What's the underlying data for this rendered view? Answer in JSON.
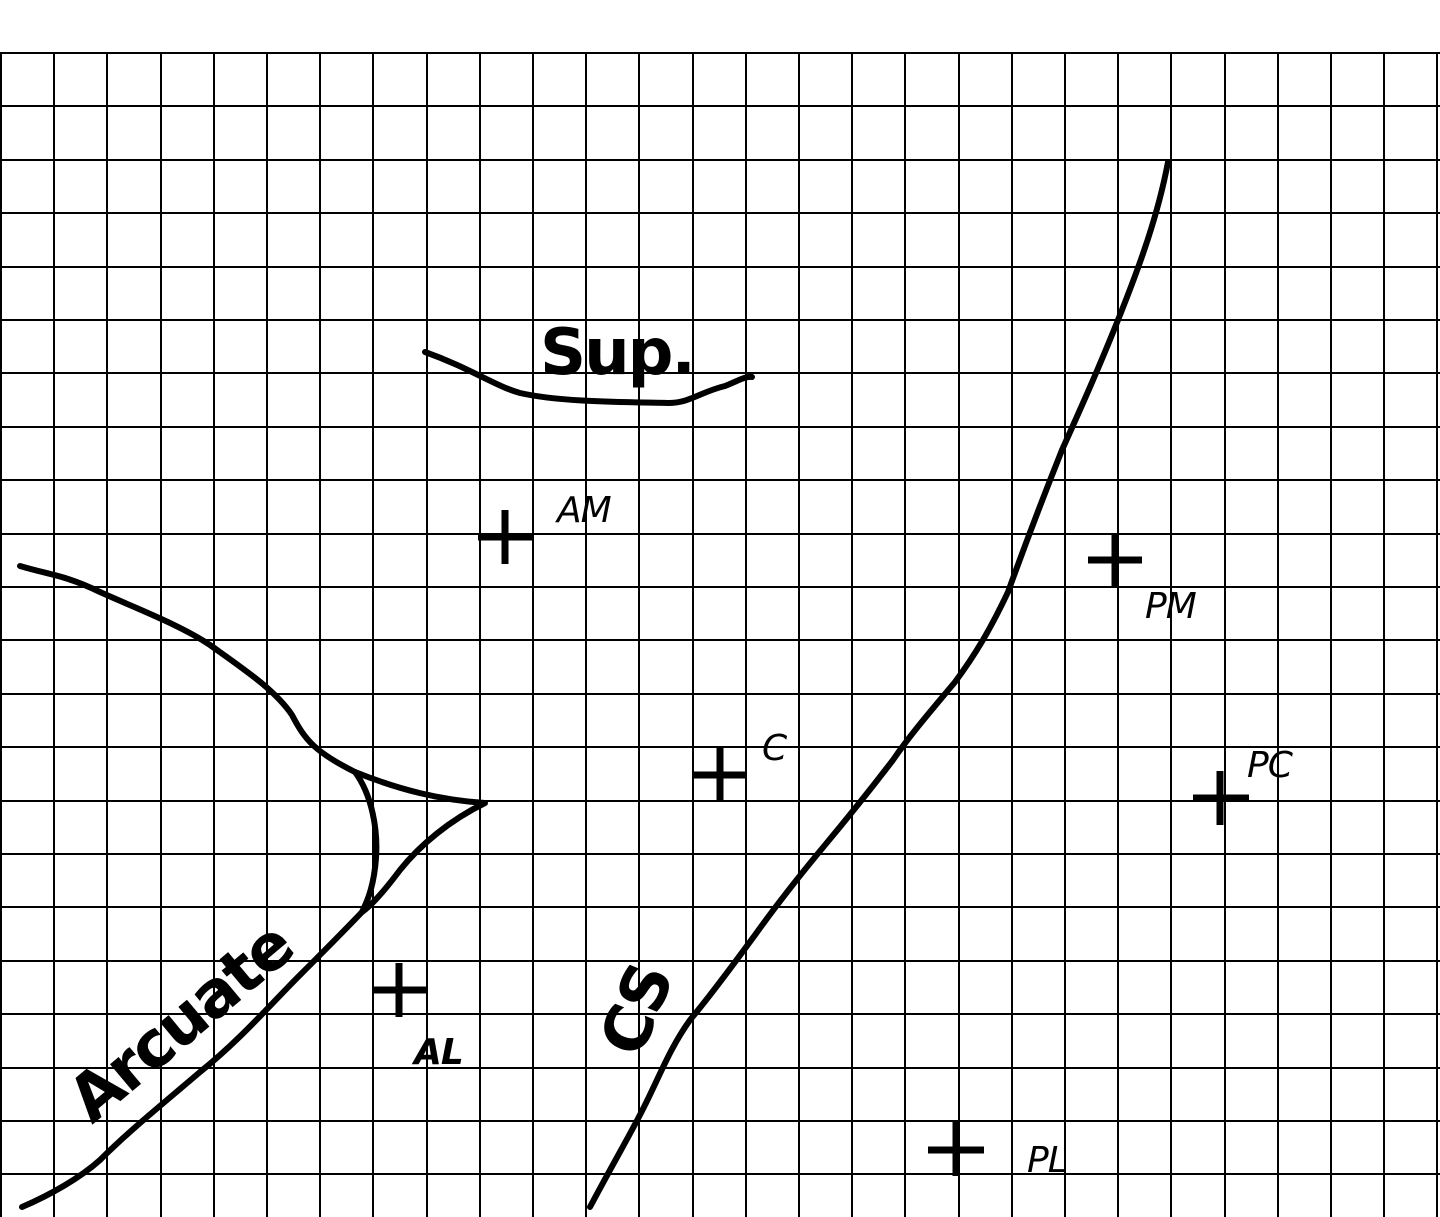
{
  "labels": {
    "sup": "Sup.",
    "arcuate": "Arcuate",
    "cs": "CS"
  },
  "sites": [
    {
      "id": "AM",
      "label": "AM"
    },
    {
      "id": "PM",
      "label": "PM"
    },
    {
      "id": "C",
      "label": "C"
    },
    {
      "id": "PC",
      "label": "PC"
    },
    {
      "id": "AL",
      "label": "AL"
    },
    {
      "id": "PL",
      "label": "PL"
    }
  ],
  "colors": {
    "line": "#000000",
    "background": "#ffffff"
  }
}
